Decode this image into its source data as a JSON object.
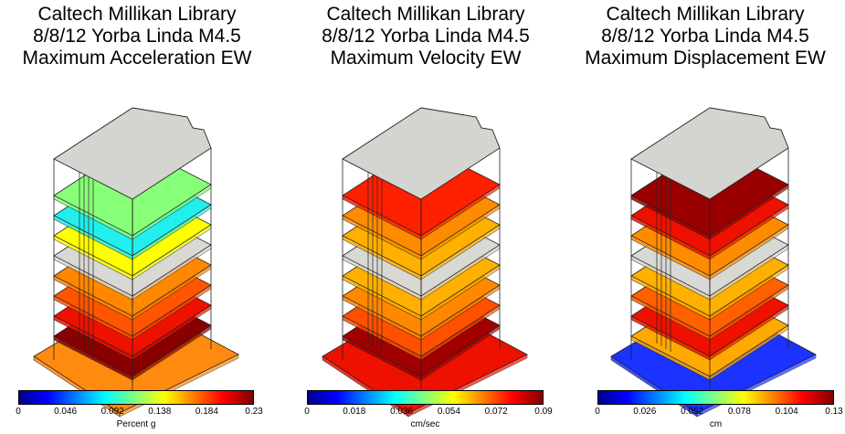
{
  "panels": [
    {
      "title": [
        "Caltech Millikan Library",
        "8/8/12 Yorba Linda M4.5",
        "Maximum Acceleration EW"
      ],
      "unit": "Percent g",
      "ticks": [
        "0",
        "0.046",
        "0.092",
        "0.138",
        "0.184",
        "0.23"
      ],
      "floors_top_to_bottom": [
        "#88ff78",
        "#22eeee",
        "#ffff00",
        "#d8d8d4",
        "#ff8800",
        "#ff5500",
        "#ee1100",
        "#880000",
        "#ff8a10"
      ],
      "roof_color": "#d4d4d0"
    },
    {
      "title": [
        "Caltech Millikan Library",
        "8/8/12 Yorba Linda M4.5",
        "Maximum Velocity EW"
      ],
      "unit": "cm/sec",
      "ticks": [
        "0",
        "0.018",
        "0.036",
        "0.054",
        "0.072",
        "0.09"
      ],
      "floors_top_to_bottom": [
        "#ff2000",
        "#ff8c00",
        "#ffb000",
        "#d8d8d4",
        "#ffb000",
        "#ff8800",
        "#ff5000",
        "#a00000",
        "#ee1100"
      ],
      "roof_color": "#d4d4d0"
    },
    {
      "title": [
        "Caltech Millikan Library",
        "8/8/12 Yorba Linda M4.5",
        "Maximum Displacement EW"
      ],
      "unit": "cm",
      "ticks": [
        "0",
        "0.026",
        "0.052",
        "0.078",
        "0.104",
        "0.13"
      ],
      "floors_top_to_bottom": [
        "#9a0000",
        "#ee1100",
        "#ff8c00",
        "#d8d8d4",
        "#ffb000",
        "#ff6000",
        "#ee1100",
        "#ffaa00",
        "#1a33ff"
      ],
      "roof_color": "#d4d4d0"
    }
  ]
}
